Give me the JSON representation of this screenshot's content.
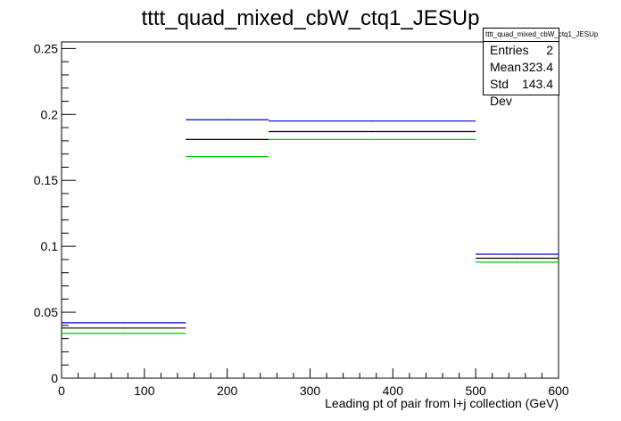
{
  "chart_data": {
    "type": "step-histogram",
    "title": "tttt_quad_mixed_cbW_ctq1_JESUp",
    "xlabel": "Leading pt of pair from l+j collection (GeV)",
    "ylabel": "",
    "xlim": [
      0,
      600
    ],
    "ylim": [
      0,
      0.255
    ],
    "x_ticks": [
      "0",
      "100",
      "200",
      "300",
      "400",
      "500",
      "600"
    ],
    "y_ticks": [
      "0",
      "0.05",
      "0.1",
      "0.15",
      "0.2",
      "0.25"
    ],
    "bin_edges": [
      0,
      150,
      250,
      500,
      600
    ],
    "series": [
      {
        "color": "#0000cc",
        "values": [
          0.042,
          0.196,
          0.195,
          0.094,
          null
        ]
      },
      {
        "color": "#000000",
        "values": [
          0.038,
          0.181,
          0.187,
          0.091,
          null
        ]
      },
      {
        "color": "#00cc00",
        "values": [
          0.034,
          0.168,
          0.181,
          0.088,
          null
        ]
      }
    ],
    "grid": false,
    "legend": "none"
  },
  "stats": {
    "name": "tttt_quad_mixed_cbW_ctq1_JESUp",
    "rows": [
      {
        "label": "Entries",
        "value": "2"
      },
      {
        "label": "Mean",
        "value": "323.4"
      },
      {
        "label": "Std Dev",
        "value": "143.4"
      }
    ]
  }
}
